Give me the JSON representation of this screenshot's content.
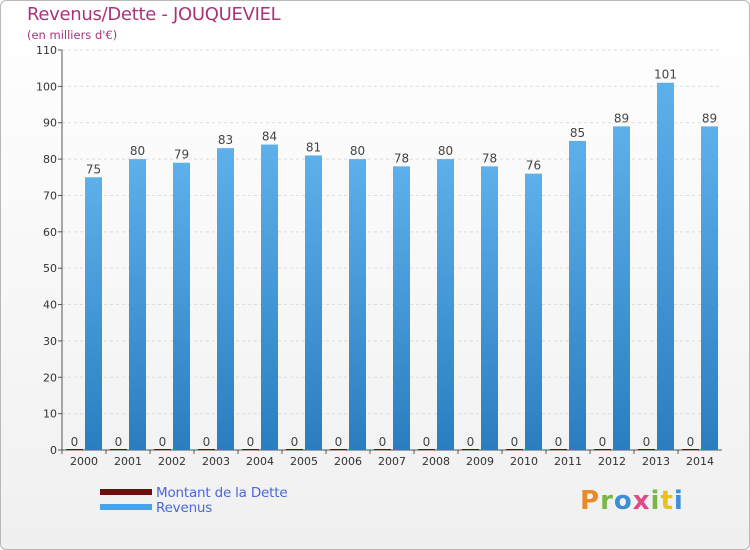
{
  "title": "Revenus/Dette - JOUQUEVIEL",
  "subtitle": "(en milliers d'€)",
  "colors": {
    "title": "#a8347a",
    "revenus_light": "#5eb0ea",
    "revenus_dark": "#2a7ec0",
    "dette": "#6b0f0f",
    "legend_text": "#4a68d8"
  },
  "legend": [
    {
      "label": "Montant de la Dette",
      "color": "#6b0f0f"
    },
    {
      "label": "Revenus",
      "color": "#4aa3e8"
    }
  ],
  "logo": {
    "text": "Proxiti"
  },
  "chart_data": {
    "type": "bar",
    "title": "Revenus/Dette - JOUQUEVIEL",
    "subtitle": "(en milliers d'€)",
    "categories": [
      "2000",
      "2001",
      "2002",
      "2003",
      "2004",
      "2005",
      "2006",
      "2007",
      "2008",
      "2009",
      "2010",
      "2011",
      "2012",
      "2013",
      "2014"
    ],
    "series": [
      {
        "name": "Montant de la Dette",
        "values": [
          0,
          0,
          0,
          0,
          0,
          0,
          0,
          0,
          0,
          0,
          0,
          0,
          0,
          0,
          0
        ]
      },
      {
        "name": "Revenus",
        "values": [
          75,
          80,
          79,
          83,
          84,
          81,
          80,
          78,
          80,
          78,
          76,
          85,
          89,
          101,
          89
        ]
      }
    ],
    "ylim": [
      0,
      110
    ],
    "yticks": [
      0,
      10,
      20,
      30,
      40,
      50,
      60,
      70,
      80,
      90,
      100,
      110
    ],
    "grid": true,
    "legend_position": "bottom-left"
  }
}
